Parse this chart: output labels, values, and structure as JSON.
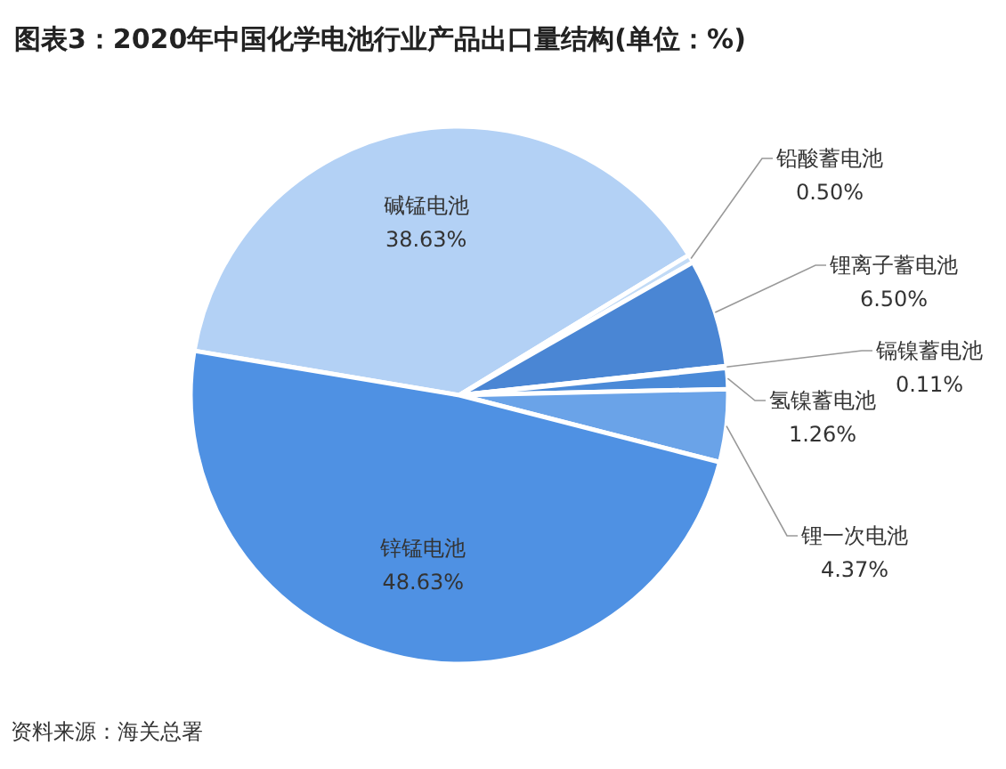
{
  "chart_data": {
    "type": "pie",
    "title": "图表3：2020年中国化学电池行业产品出口量结构(单位：%)",
    "categories": [
      "碱锰电池",
      "铅酸蓄电池",
      "锂离子蓄电池",
      "镉镍蓄电池",
      "氢镍蓄电池",
      "锂一次电池",
      "锌锰电池"
    ],
    "values": [
      38.63,
      0.5,
      6.5,
      0.11,
      1.26,
      4.37,
      48.63
    ],
    "colors": [
      "#b3d1f5",
      "#c2dbf6",
      "#4a86d4",
      "#a9cbf2",
      "#4a8ad8",
      "#6aa3e8",
      "#4f91e3"
    ],
    "value_labels": [
      "38.63%",
      "0.50%",
      "6.50%",
      "0.11%",
      "1.26%",
      "4.37%",
      "48.63%"
    ],
    "annotations": [
      "资料来源：海关总署"
    ]
  }
}
